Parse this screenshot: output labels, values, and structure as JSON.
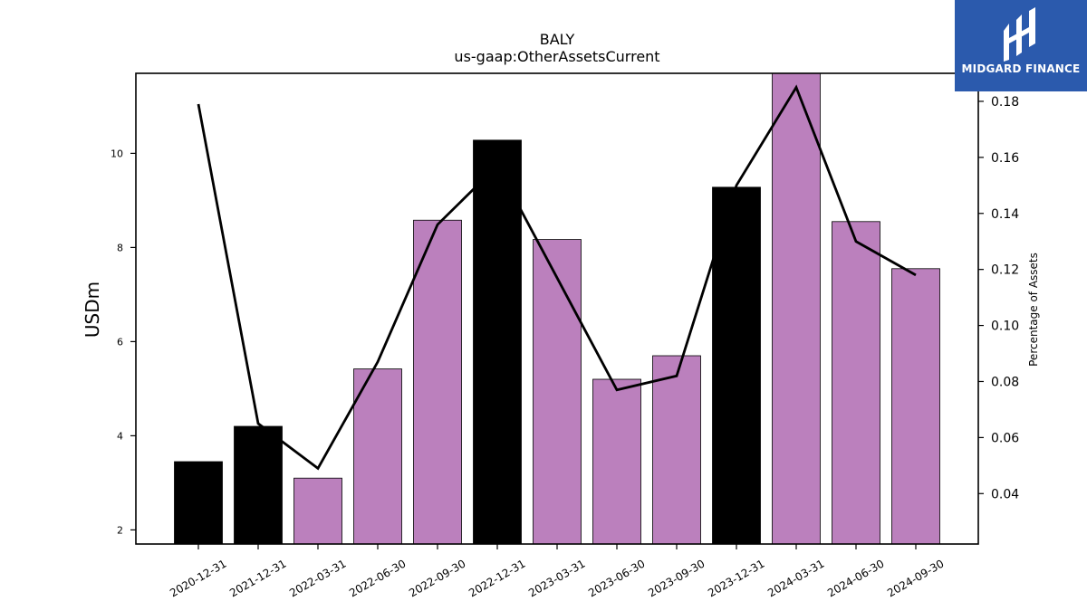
{
  "chart_data": {
    "type": "bar",
    "title": "BALY",
    "subtitle": "us-gaap:OtherAssetsCurrent",
    "ylabel": "USDm",
    "y2label": "Percentage of Assets",
    "ylim": [
      1.7,
      11.7
    ],
    "y2lim": [
      0.022,
      0.19
    ],
    "yticks": [
      2,
      4,
      6,
      8,
      10
    ],
    "y2ticks": [
      0.04,
      0.06,
      0.08,
      0.1,
      0.12,
      0.14,
      0.16,
      0.18
    ],
    "y2tick_labels": [
      "0.04",
      "0.06",
      "0.08",
      "0.10",
      "0.12",
      "0.14",
      "0.16",
      "0.18"
    ],
    "categories": [
      "2020-12-31",
      "2021-12-31",
      "2022-03-31",
      "2022-06-30",
      "2022-09-30",
      "2022-12-31",
      "2023-03-31",
      "2023-06-30",
      "2023-09-30",
      "2023-12-31",
      "2024-03-31",
      "2024-06-30",
      "2024-09-30"
    ],
    "series": [
      {
        "kind": "bar",
        "axis": "left",
        "values": [
          3.45,
          4.2,
          3.1,
          5.42,
          8.58,
          10.28,
          8.17,
          5.2,
          5.7,
          9.28,
          11.75,
          8.55,
          7.55
        ],
        "colors": [
          "#000000",
          "#000000",
          "#bb80bd",
          "#bb80bd",
          "#bb80bd",
          "#000000",
          "#bb80bd",
          "#bb80bd",
          "#bb80bd",
          "#000000",
          "#bb80bd",
          "#bb80bd",
          "#bb80bd"
        ]
      },
      {
        "kind": "line",
        "axis": "right",
        "values": [
          0.179,
          0.065,
          0.049,
          0.087,
          0.136,
          0.157,
          0.117,
          0.077,
          0.082,
          0.15,
          0.185,
          0.13,
          0.118
        ],
        "color": "#000000"
      }
    ],
    "grid": false,
    "legend": "none"
  },
  "logo": {
    "text": "MIDGARD FINANCE",
    "color": "#2b5aad"
  }
}
